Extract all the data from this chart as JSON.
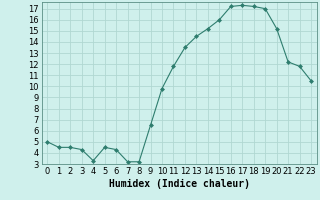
{
  "x": [
    0,
    1,
    2,
    3,
    4,
    5,
    6,
    7,
    8,
    9,
    10,
    11,
    12,
    13,
    14,
    15,
    16,
    17,
    18,
    19,
    20,
    21,
    22,
    23
  ],
  "y": [
    5.0,
    4.5,
    4.5,
    4.3,
    3.3,
    4.5,
    4.3,
    3.2,
    3.2,
    6.5,
    9.8,
    11.8,
    13.5,
    14.5,
    15.2,
    16.0,
    17.2,
    17.3,
    17.2,
    17.0,
    15.2,
    12.2,
    11.8,
    10.5
  ],
  "line_color": "#2e7d6e",
  "marker": "D",
  "marker_size": 2,
  "bg_color": "#cff0ec",
  "grid_color": "#b0d8d2",
  "xlabel": "Humidex (Indice chaleur)",
  "ylim": [
    3,
    17.6
  ],
  "xlim": [
    -0.5,
    23.5
  ],
  "yticks": [
    3,
    4,
    5,
    6,
    7,
    8,
    9,
    10,
    11,
    12,
    13,
    14,
    15,
    16,
    17
  ],
  "xticks": [
    0,
    1,
    2,
    3,
    4,
    5,
    6,
    7,
    8,
    9,
    10,
    11,
    12,
    13,
    14,
    15,
    16,
    17,
    18,
    19,
    20,
    21,
    22,
    23
  ],
  "xlabel_fontsize": 7,
  "tick_fontsize": 6
}
